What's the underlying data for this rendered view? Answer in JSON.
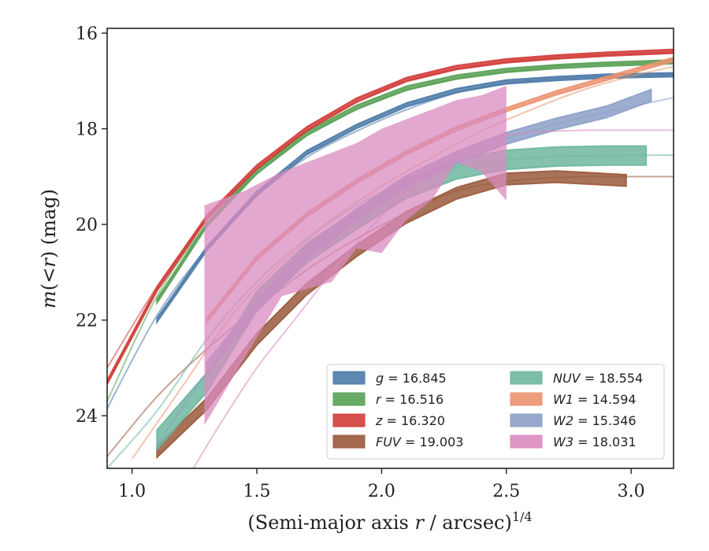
{
  "chart_data": {
    "type": "line",
    "xlabel": "(Semi-major axis r / arcsec)^{1/4}",
    "ylabel": "m(<r) (mag)",
    "xlim": [
      0.9,
      3.17
    ],
    "ylim": [
      25.1,
      15.9
    ],
    "y_inverted": true,
    "grid": false,
    "xticks": [
      1.0,
      1.5,
      2.0,
      2.5,
      3.0
    ],
    "xtick_labels": [
      "1.0",
      "1.5",
      "2.0",
      "2.5",
      "3.0"
    ],
    "yticks": [
      16,
      18,
      20,
      22,
      24
    ],
    "ytick_labels": [
      "16",
      "18",
      "20",
      "22",
      "24"
    ],
    "legend": {
      "placement": "bottom-right",
      "columns": 2
    },
    "series": [
      {
        "name": "g = 16.845",
        "legend_var": "g",
        "legend_value": "16.845",
        "color": "#4c7aa8",
        "model_x": [
          0.9,
          1.1,
          1.3,
          1.5,
          1.7,
          1.9,
          2.1,
          2.3,
          2.5,
          2.7,
          2.9,
          3.17
        ],
        "model_y": [
          23.85,
          21.9,
          20.5,
          19.4,
          18.6,
          18.05,
          17.6,
          17.25,
          17.05,
          16.95,
          16.9,
          16.87
        ],
        "measured_x": [
          1.1,
          1.3,
          1.5,
          1.7,
          1.9,
          2.1,
          2.3,
          2.5,
          2.7,
          2.9,
          3.17
        ],
        "measured_y": [
          22.0,
          20.5,
          19.35,
          18.5,
          17.95,
          17.5,
          17.2,
          17.02,
          16.95,
          16.9,
          16.87
        ],
        "band": 0.04
      },
      {
        "name": "r = 16.516",
        "legend_var": "r",
        "legend_value": "16.516",
        "color": "#5aa156",
        "model_x": [
          0.9,
          1.1,
          1.3,
          1.5,
          1.7,
          1.9,
          2.1,
          2.3,
          2.5,
          2.7,
          2.9,
          3.17
        ],
        "model_y": [
          23.7,
          21.5,
          20.0,
          18.95,
          18.15,
          17.6,
          17.2,
          16.95,
          16.8,
          16.7,
          16.65,
          16.6
        ],
        "measured_x": [
          1.1,
          1.3,
          1.5,
          1.7,
          1.9,
          2.1,
          2.3,
          2.5,
          2.7,
          2.9,
          3.17
        ],
        "measured_y": [
          21.6,
          20.0,
          18.9,
          18.1,
          17.55,
          17.15,
          16.92,
          16.78,
          16.7,
          16.65,
          16.6
        ],
        "band": 0.04
      },
      {
        "name": "z = 16.320",
        "legend_var": "z",
        "legend_value": "16.320",
        "color": "#d23d3a",
        "model_x": [
          0.9,
          1.1,
          1.3,
          1.5,
          1.7,
          1.9,
          2.1,
          2.3,
          2.5,
          2.7,
          2.9,
          3.17
        ],
        "model_y": [
          23.0,
          21.3,
          19.9,
          18.85,
          18.05,
          17.45,
          17.0,
          16.75,
          16.6,
          16.5,
          16.45,
          16.4
        ],
        "measured_x": [
          0.9,
          1.1,
          1.3,
          1.5,
          1.7,
          1.9,
          2.1,
          2.3,
          2.5,
          2.7,
          2.9,
          3.17
        ],
        "measured_y": [
          23.3,
          21.35,
          19.85,
          18.8,
          18.0,
          17.4,
          16.97,
          16.72,
          16.58,
          16.5,
          16.44,
          16.38
        ],
        "band": 0.04
      },
      {
        "name": "FUV = 19.003",
        "legend_var": "FUV",
        "legend_value": "19.003",
        "color": "#9a5a3c",
        "model_x": [
          0.9,
          1.1,
          1.3,
          1.5,
          1.7,
          1.9,
          2.1,
          2.3,
          2.5,
          2.7,
          2.9,
          3.17
        ],
        "model_y": [
          24.85,
          23.6,
          22.6,
          21.75,
          20.95,
          20.3,
          19.75,
          19.3,
          19.1,
          19.02,
          19.0,
          19.0
        ],
        "measured_x": [
          1.1,
          1.3,
          1.5,
          1.7,
          1.9,
          2.1,
          2.3,
          2.5,
          2.7,
          2.98
        ],
        "measured_y": [
          24.75,
          23.75,
          22.4,
          21.35,
          20.55,
          19.85,
          19.35,
          19.05,
          19.0,
          19.08
        ],
        "band": 0.12
      },
      {
        "name": "NUV = 18.554",
        "legend_var": "NUV",
        "legend_value": "18.554",
        "color": "#6fb7a0",
        "model_x": [
          0.9,
          1.1,
          1.3,
          1.5,
          1.7,
          1.9,
          2.1,
          2.3,
          2.5,
          2.7,
          2.9,
          3.17
        ],
        "model_y": [
          25.1,
          23.9,
          22.4,
          21.2,
          20.3,
          19.6,
          19.1,
          18.8,
          18.65,
          18.58,
          18.56,
          18.55
        ],
        "measured_x": [
          1.1,
          1.3,
          1.5,
          1.7,
          1.9,
          2.1,
          2.3,
          2.5,
          2.7,
          2.9,
          3.06
        ],
        "measured_y": [
          24.5,
          23.3,
          21.6,
          20.6,
          19.9,
          19.25,
          18.85,
          18.65,
          18.58,
          18.56,
          18.56
        ],
        "band": 0.2
      },
      {
        "name": "W1 = 14.594",
        "legend_var": "W1",
        "legend_value": "14.594",
        "color": "#ec9370",
        "model_x": [
          1.0,
          1.2,
          1.4,
          1.6,
          1.8,
          2.0,
          2.2,
          2.4,
          2.6,
          2.8,
          3.0,
          3.17
        ],
        "model_y": [
          24.9,
          23.4,
          21.9,
          20.8,
          19.9,
          19.2,
          18.6,
          18.05,
          17.6,
          17.2,
          16.9,
          16.7
        ],
        "measured_x": [
          1.3,
          1.5,
          1.7,
          1.9,
          2.1,
          2.3,
          2.5,
          2.7,
          2.9,
          3.17
        ],
        "measured_y": [
          22.0,
          20.7,
          19.8,
          19.1,
          18.5,
          18.0,
          17.6,
          17.25,
          16.95,
          16.55
        ],
        "band": 0.04
      },
      {
        "name": "W2 = 15.346",
        "legend_var": "W2",
        "legend_value": "15.346",
        "color": "#8da0c8",
        "model_x": [
          1.1,
          1.3,
          1.5,
          1.7,
          1.9,
          2.1,
          2.3,
          2.5,
          2.7,
          2.9,
          3.17
        ],
        "model_y": [
          24.6,
          23.1,
          21.7,
          20.6,
          19.8,
          19.15,
          18.6,
          18.2,
          17.9,
          17.65,
          17.35
        ],
        "measured_x": [
          1.3,
          1.5,
          1.7,
          1.9,
          2.1,
          2.3,
          2.5,
          2.7,
          2.9,
          3.08
        ],
        "measured_y": [
          23.0,
          21.7,
          20.6,
          19.8,
          19.1,
          18.6,
          18.2,
          17.9,
          17.65,
          17.3
        ],
        "band": 0.12
      },
      {
        "name": "W3 = 18.031",
        "legend_var": "W3",
        "legend_value": "18.031",
        "color": "#d98bbf",
        "model_x": [
          1.2,
          1.35,
          1.5,
          1.65,
          1.8,
          1.95,
          2.1,
          2.25,
          2.4,
          2.55,
          2.7,
          2.85,
          3.17
        ],
        "model_y": [
          25.5,
          24.2,
          23.0,
          22.0,
          21.0,
          20.1,
          19.3,
          18.7,
          18.3,
          18.1,
          18.05,
          18.03,
          18.03
        ],
        "band_x": [
          1.29,
          1.45,
          1.6,
          1.8,
          1.9,
          2.0,
          2.1,
          2.2,
          2.3,
          2.4,
          2.5
        ],
        "band_upper": [
          19.6,
          19.3,
          18.9,
          18.5,
          18.3,
          18.0,
          17.8,
          17.6,
          17.4,
          17.3,
          17.1
        ],
        "band_lower": [
          24.2,
          22.8,
          21.5,
          21.2,
          20.5,
          20.6,
          19.9,
          19.5,
          18.7,
          18.9,
          19.5
        ]
      }
    ]
  }
}
